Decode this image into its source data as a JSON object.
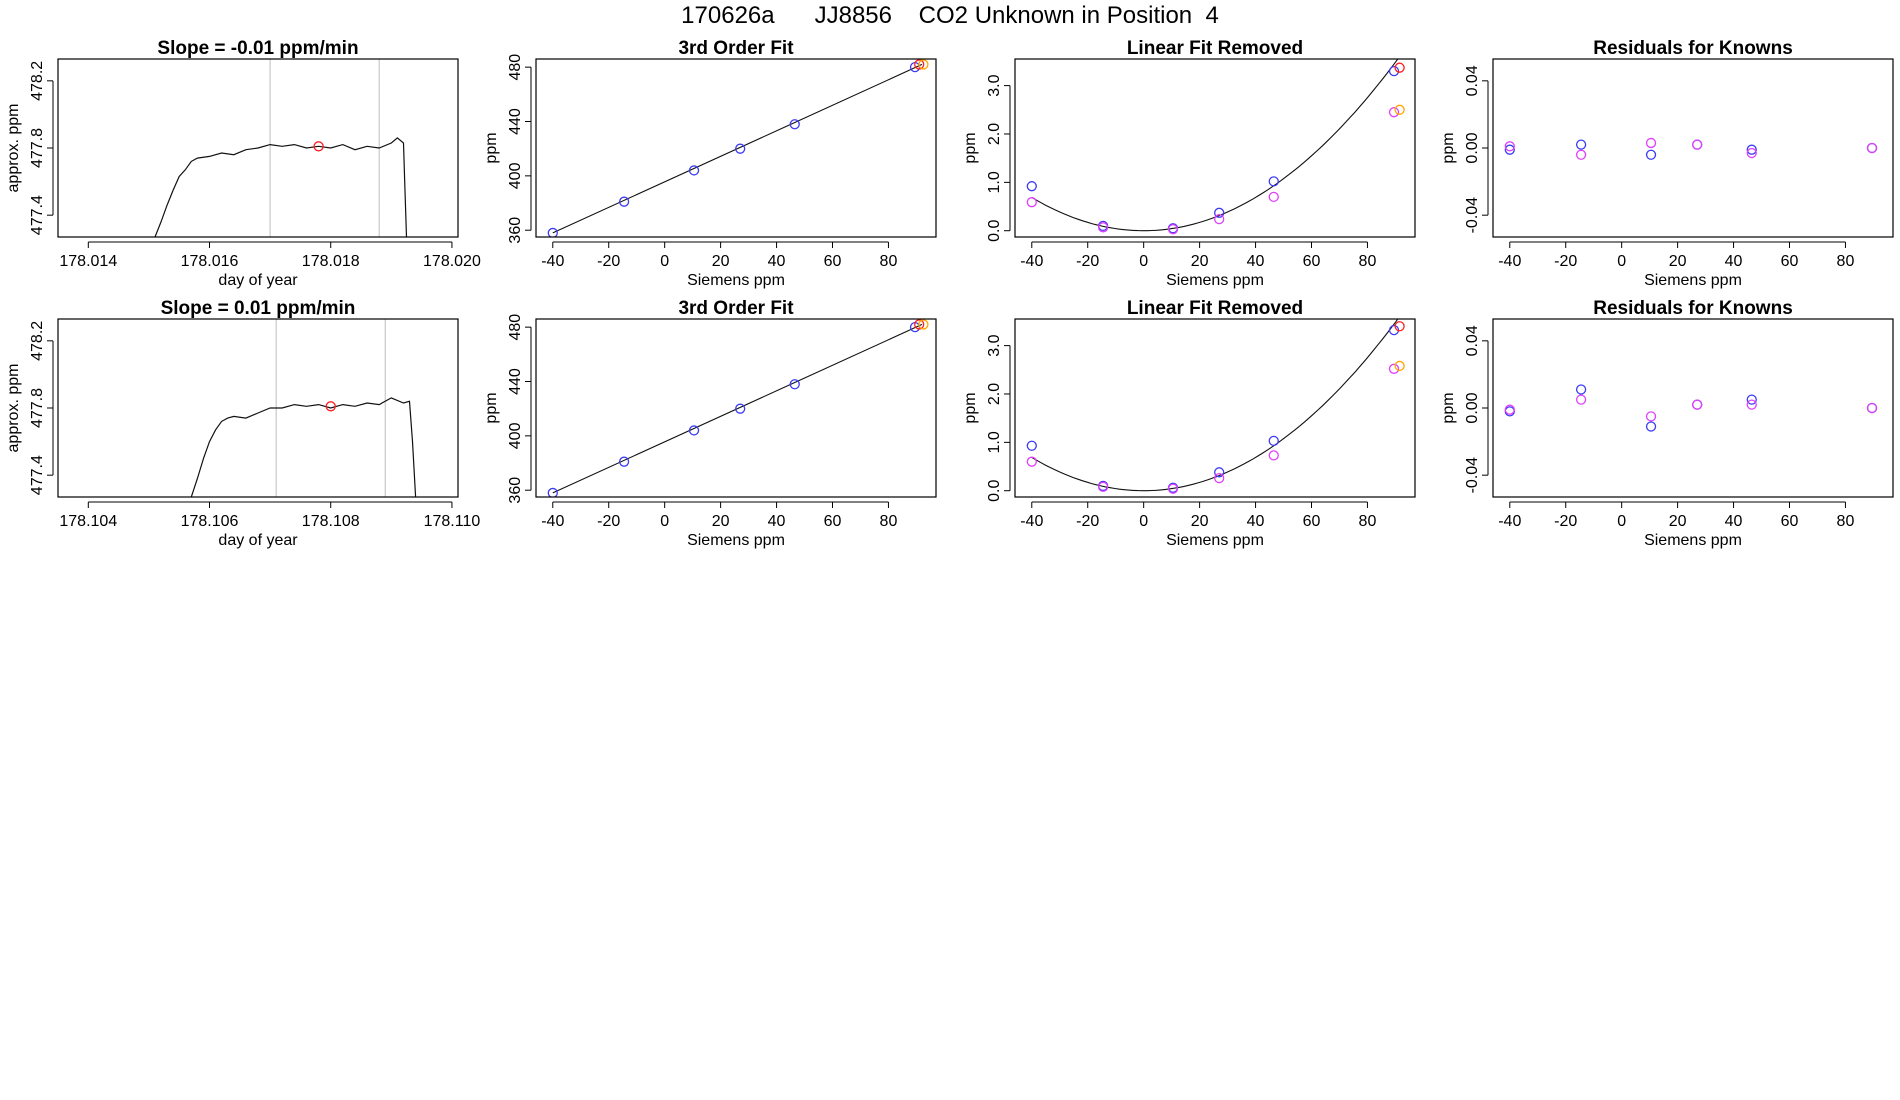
{
  "page_title": "170626a      JJ8856    CO2 Unknown in Position  4",
  "colors": {
    "blue": "#3b3bf5",
    "purple": "#8a2be2",
    "magenta": "#e040fb",
    "orange": "#ffa500",
    "red": "#ff2020",
    "grey": "#c8c8c8"
  },
  "chart_data": [
    {
      "type": "line",
      "title": "Slope =  -0.01  ppm/min",
      "xlabel": "day of year",
      "ylabel": "approx. ppm",
      "xlim": [
        178.0135,
        178.0201
      ],
      "ylim": [
        477.27,
        478.33
      ],
      "xticks": [
        178.014,
        178.016,
        178.018,
        178.02
      ],
      "xtick_labels": [
        "178.014",
        "178.016",
        "178.018",
        "178.020"
      ],
      "yticks": [
        477.4,
        477.8,
        478.2
      ],
      "ytick_labels": [
        "477.4",
        "477.8",
        "478.2"
      ],
      "vlines": [
        178.017,
        178.0188
      ],
      "series": [
        {
          "x": [
            178.0151,
            178.0152,
            178.0153,
            178.0154,
            178.0155,
            178.0156,
            178.0157,
            178.0158,
            178.016,
            178.0162,
            178.0164,
            178.0166,
            178.0168,
            178.017,
            178.0172,
            178.0174,
            178.0176,
            178.0178,
            178.018,
            178.0182,
            178.0184,
            178.0186,
            178.0188,
            178.019,
            178.0191,
            178.0192,
            178.01922,
            178.01925
          ],
          "y": [
            477.27,
            477.36,
            477.46,
            477.55,
            477.63,
            477.67,
            477.72,
            477.74,
            477.75,
            477.77,
            477.76,
            477.79,
            477.8,
            477.82,
            477.81,
            477.82,
            477.8,
            477.81,
            477.8,
            477.82,
            477.79,
            477.81,
            477.8,
            477.83,
            477.86,
            477.83,
            477.6,
            477.27
          ]
        }
      ],
      "marker": {
        "x": 178.0178,
        "y": 477.81
      }
    },
    {
      "type": "scatter",
      "title": "3rd Order Fit",
      "xlabel": "Siemens ppm",
      "ylabel": "ppm",
      "xlim": [
        -46,
        97
      ],
      "ylim": [
        355,
        486
      ],
      "xticks": [
        -40,
        -20,
        0,
        20,
        40,
        60,
        80
      ],
      "xtick_labels": [
        "-40",
        "-20",
        "0",
        "20",
        "40",
        "60",
        "80"
      ],
      "yticks": [
        360,
        400,
        440,
        480
      ],
      "ytick_labels": [
        "360",
        "400",
        "440",
        "480"
      ],
      "fit_line": {
        "x": [
          -40,
          92
        ],
        "y": [
          358,
          482
        ]
      },
      "series": [
        {
          "color": "blue",
          "x": [
            -40,
            -14.5,
            10.5,
            27,
            46.5,
            89.5
          ],
          "y": [
            358,
            381,
            404,
            420,
            438,
            480
          ]
        },
        {
          "color": "red",
          "x": [
            91
          ],
          "y": [
            482
          ]
        },
        {
          "color": "orange",
          "x": [
            92.5
          ],
          "y": [
            482
          ]
        }
      ]
    },
    {
      "type": "scatter",
      "title": "Linear Fit Removed",
      "xlabel": "Siemens ppm",
      "ylabel": "ppm",
      "xlim": [
        -46,
        97
      ],
      "ylim": [
        -0.13,
        3.55
      ],
      "xticks": [
        -40,
        -20,
        0,
        20,
        40,
        60,
        80
      ],
      "xtick_labels": [
        "-40",
        "-20",
        "0",
        "20",
        "40",
        "60",
        "80"
      ],
      "yticks": [
        0.0,
        1.0,
        2.0,
        3.0
      ],
      "ytick_labels": [
        "0.0",
        "1.0",
        "2.0",
        "3.0"
      ],
      "fit_curve": {
        "x0": -40,
        "x1": 92,
        "coeffs": [
          0,
          0,
          0.00043
        ]
      },
      "series": [
        {
          "color": "blue",
          "x": [
            -40,
            -14.5,
            10.5,
            27,
            46.5,
            89.5
          ],
          "y": [
            0.92,
            0.1,
            0.05,
            0.37,
            1.02,
            3.3
          ]
        },
        {
          "color": "magenta",
          "x": [
            -40,
            -14.5,
            10.5,
            27,
            46.5,
            89.5
          ],
          "y": [
            0.59,
            0.07,
            0.03,
            0.24,
            0.7,
            2.45
          ]
        },
        {
          "color": "orange",
          "x": [
            91.5
          ],
          "y": [
            2.5
          ]
        },
        {
          "color": "red",
          "x": [
            91.5
          ],
          "y": [
            3.37
          ]
        }
      ]
    },
    {
      "type": "scatter",
      "title": "Residuals for Knowns",
      "xlabel": "Siemens ppm",
      "ylabel": "ppm",
      "xlim": [
        -46,
        97
      ],
      "ylim": [
        -0.053,
        0.053
      ],
      "xticks": [
        -40,
        -20,
        0,
        20,
        40,
        60,
        80
      ],
      "xtick_labels": [
        "-40",
        "-20",
        "0",
        "20",
        "40",
        "60",
        "80"
      ],
      "yticks": [
        -0.04,
        0.0,
        0.04
      ],
      "ytick_labels": [
        "-0.04",
        "0.00",
        "0.04"
      ],
      "series": [
        {
          "color": "blue",
          "x": [
            -40,
            -14.5,
            10.5,
            27,
            46.5,
            89.5
          ],
          "y": [
            -0.001,
            0.002,
            -0.004,
            0.002,
            -0.001,
            0.0
          ]
        },
        {
          "color": "magenta",
          "x": [
            -40,
            -14.5,
            10.5,
            27,
            46.5,
            89.5
          ],
          "y": [
            0.001,
            -0.004,
            0.003,
            0.002,
            -0.003,
            0.0
          ]
        }
      ]
    },
    {
      "type": "line",
      "title": "Slope =  0.01  ppm/min",
      "xlabel": "day of year",
      "ylabel": "approx. ppm",
      "xlim": [
        178.1035,
        178.1101
      ],
      "ylim": [
        477.27,
        478.33
      ],
      "xticks": [
        178.104,
        178.106,
        178.108,
        178.11
      ],
      "xtick_labels": [
        "178.104",
        "178.106",
        "178.108",
        "178.110"
      ],
      "yticks": [
        477.4,
        477.8,
        478.2
      ],
      "ytick_labels": [
        "477.4",
        "477.8",
        "478.2"
      ],
      "vlines": [
        178.1071,
        178.1089
      ],
      "series": [
        {
          "x": [
            178.1057,
            178.1058,
            178.1059,
            178.106,
            178.1061,
            178.1062,
            178.1063,
            178.1064,
            178.1066,
            178.1068,
            178.107,
            178.1072,
            178.1074,
            178.1076,
            178.1078,
            178.108,
            178.1082,
            178.1084,
            178.1086,
            178.1088,
            178.109,
            178.1092,
            178.1093,
            178.10935,
            178.1094
          ],
          "y": [
            477.27,
            477.38,
            477.5,
            477.6,
            477.67,
            477.72,
            477.74,
            477.75,
            477.74,
            477.77,
            477.8,
            477.8,
            477.82,
            477.81,
            477.82,
            477.8,
            477.82,
            477.81,
            477.83,
            477.82,
            477.86,
            477.83,
            477.84,
            477.6,
            477.27
          ]
        }
      ],
      "marker": {
        "x": 178.108,
        "y": 477.81
      }
    },
    {
      "type": "scatter",
      "title": "3rd Order Fit",
      "xlabel": "Siemens ppm",
      "ylabel": "ppm",
      "xlim": [
        -46,
        97
      ],
      "ylim": [
        355,
        486
      ],
      "xticks": [
        -40,
        -20,
        0,
        20,
        40,
        60,
        80
      ],
      "xtick_labels": [
        "-40",
        "-20",
        "0",
        "20",
        "40",
        "60",
        "80"
      ],
      "yticks": [
        360,
        400,
        440,
        480
      ],
      "ytick_labels": [
        "360",
        "400",
        "440",
        "480"
      ],
      "fit_line": {
        "x": [
          -40,
          92
        ],
        "y": [
          358,
          482
        ]
      },
      "series": [
        {
          "color": "blue",
          "x": [
            -40,
            -14.5,
            10.5,
            27,
            46.5,
            89.5
          ],
          "y": [
            358,
            381,
            404,
            420,
            438,
            480
          ]
        },
        {
          "color": "red",
          "x": [
            91
          ],
          "y": [
            482
          ]
        },
        {
          "color": "orange",
          "x": [
            92.5
          ],
          "y": [
            482
          ]
        }
      ]
    },
    {
      "type": "scatter",
      "title": "Linear Fit Removed",
      "xlabel": "Siemens ppm",
      "ylabel": "ppm",
      "xlim": [
        -46,
        97
      ],
      "ylim": [
        -0.13,
        3.55
      ],
      "xticks": [
        -40,
        -20,
        0,
        20,
        40,
        60,
        80
      ],
      "xtick_labels": [
        "-40",
        "-20",
        "0",
        "20",
        "40",
        "60",
        "80"
      ],
      "yticks": [
        0.0,
        1.0,
        2.0,
        3.0
      ],
      "ytick_labels": [
        "0.0",
        "1.0",
        "2.0",
        "3.0"
      ],
      "fit_curve": {
        "x0": -40,
        "x1": 92,
        "coeffs": [
          0,
          0,
          0.00043
        ]
      },
      "series": [
        {
          "color": "blue",
          "x": [
            -40,
            -14.5,
            10.5,
            27,
            46.5,
            89.5
          ],
          "y": [
            0.93,
            0.1,
            0.06,
            0.38,
            1.03,
            3.32
          ]
        },
        {
          "color": "magenta",
          "x": [
            -40,
            -14.5,
            10.5,
            27,
            46.5,
            89.5
          ],
          "y": [
            0.6,
            0.08,
            0.04,
            0.26,
            0.73,
            2.52
          ]
        },
        {
          "color": "orange",
          "x": [
            91.5
          ],
          "y": [
            2.58
          ]
        },
        {
          "color": "red",
          "x": [
            91.5
          ],
          "y": [
            3.4
          ]
        }
      ]
    },
    {
      "type": "scatter",
      "title": "Residuals for Knowns",
      "xlabel": "Siemens ppm",
      "ylabel": "ppm",
      "xlim": [
        -46,
        97
      ],
      "ylim": [
        -0.053,
        0.053
      ],
      "xticks": [
        -40,
        -20,
        0,
        20,
        40,
        60,
        80
      ],
      "xtick_labels": [
        "-40",
        "-20",
        "0",
        "20",
        "40",
        "60",
        "80"
      ],
      "yticks": [
        -0.04,
        0.0,
        0.04
      ],
      "ytick_labels": [
        "-0.04",
        "0.00",
        "0.04"
      ],
      "series": [
        {
          "color": "blue",
          "x": [
            -40,
            -14.5,
            10.5,
            27,
            46.5,
            89.5
          ],
          "y": [
            -0.002,
            0.011,
            -0.011,
            0.002,
            0.005,
            0.0
          ]
        },
        {
          "color": "magenta",
          "x": [
            -40,
            -14.5,
            10.5,
            27,
            46.5,
            89.5
          ],
          "y": [
            -0.001,
            0.005,
            -0.005,
            0.002,
            0.002,
            0.0
          ]
        }
      ]
    }
  ]
}
